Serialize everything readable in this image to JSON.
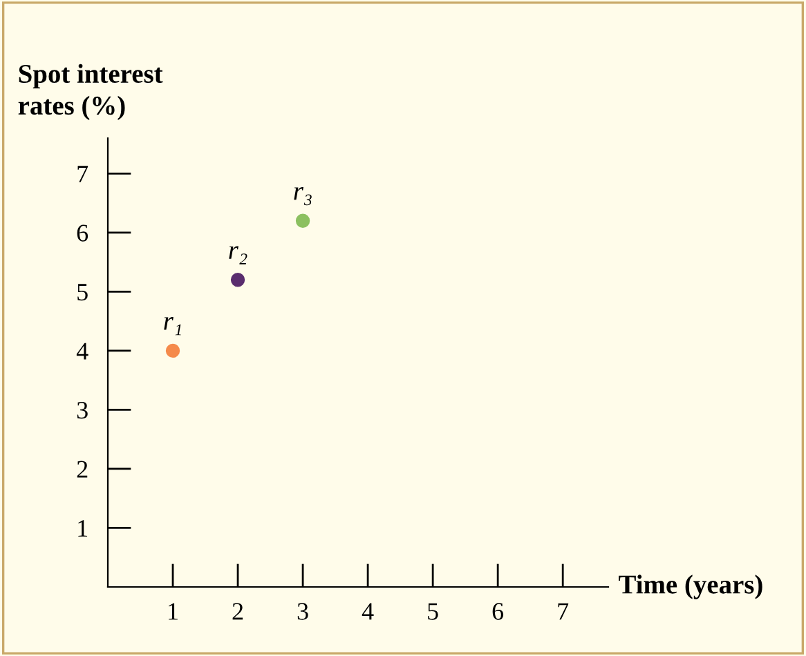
{
  "chart_data": {
    "type": "scatter",
    "xlabel": "Time (years)",
    "ylabel": "Spot interest\nrates (%)",
    "x": [
      1,
      2,
      3
    ],
    "values": [
      4.0,
      5.2,
      6.2
    ],
    "colors": [
      "#f58a4b",
      "#5a2d6e",
      "#8cc060"
    ],
    "xlim": [
      0,
      7.7
    ],
    "ylim": [
      0,
      7.6
    ],
    "xticks": [
      1,
      2,
      3,
      4,
      5,
      6,
      7
    ],
    "yticks": [
      1,
      2,
      3,
      4,
      5,
      6,
      7
    ],
    "grid": false,
    "marker": "circle",
    "annotations": [
      {
        "text": "r₁",
        "x": 1,
        "y": 4.0
      },
      {
        "text": "r₂",
        "x": 2,
        "y": 5.2
      },
      {
        "text": "r₃",
        "x": 3,
        "y": 6.2
      }
    ]
  }
}
